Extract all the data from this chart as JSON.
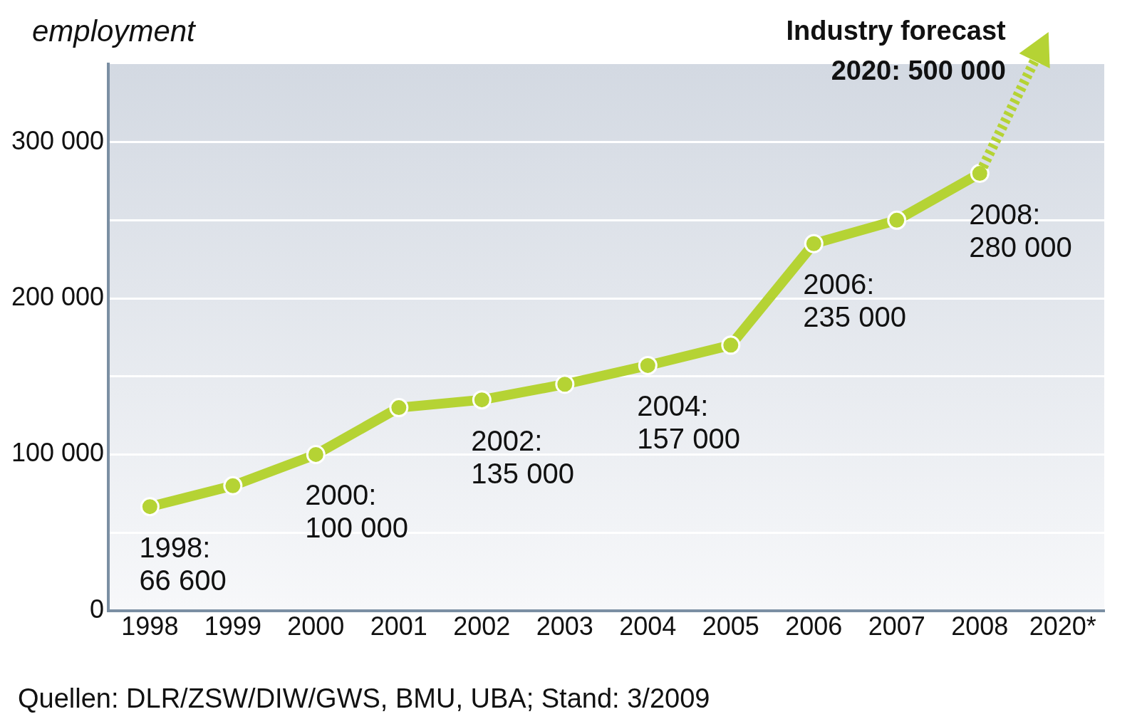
{
  "chart_data": {
    "type": "line",
    "title": "employment",
    "categories": [
      "1998",
      "1999",
      "2000",
      "2001",
      "2002",
      "2003",
      "2004",
      "2005",
      "2006",
      "2007",
      "2008",
      "2020*"
    ],
    "series": [
      {
        "color": "#b5d334",
        "values": [
          66600,
          80000,
          100000,
          130000,
          135000,
          145000,
          157000,
          170000,
          235000,
          250000,
          280000,
          null
        ],
        "value_labels": [
          "1998: 66 600",
          null,
          "2000: 100 000",
          null,
          "2002: 135 000",
          null,
          "2004: 157 000",
          null,
          "2006: 235 000",
          null,
          "2008: 280 000",
          null
        ]
      }
    ],
    "ylim": [
      0,
      350000
    ],
    "yticks": [
      0,
      {
        "value": 50000,
        "label": null
      },
      {
        "value": 100000,
        "label": "100 000"
      },
      {
        "value": 150000,
        "label": null
      },
      {
        "value": 200000,
        "label": "200 000"
      },
      {
        "value": 250000,
        "label": null
      },
      {
        "value": 300000,
        "label": "300 000"
      }
    ],
    "grid": "y",
    "legend": false,
    "marker": "circle",
    "line_style": "solid",
    "annotations": [
      "Industry forecast",
      "2020: 500 000",
      "Quellen: DLR/ZSW/DIW/GWS, BMU, UBA; Stand: 3/2009"
    ]
  }
}
